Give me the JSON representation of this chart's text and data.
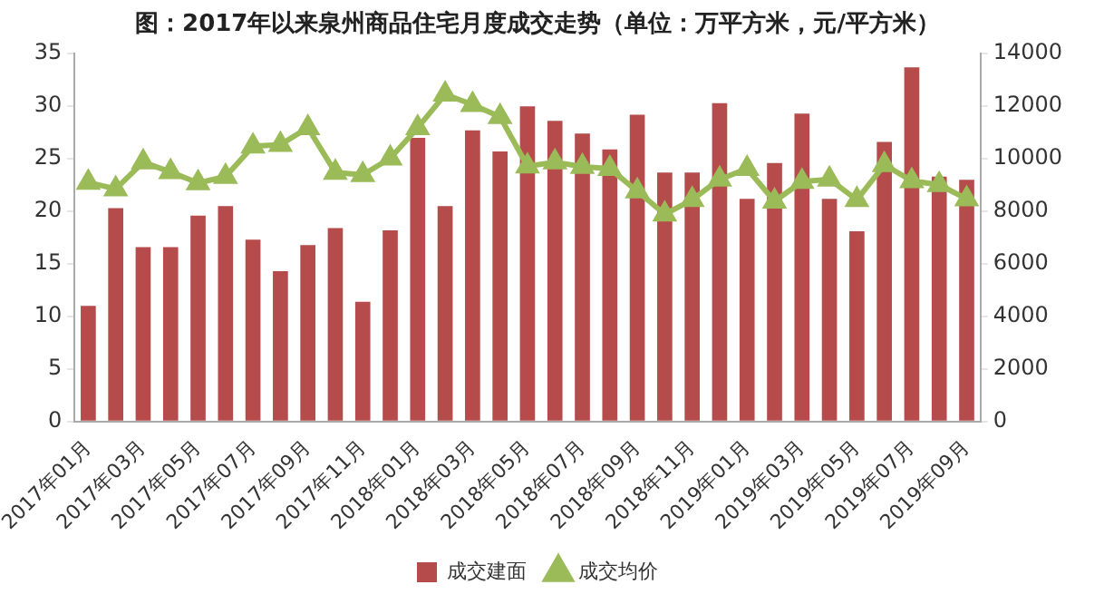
{
  "chart_data": {
    "type": "bar",
    "title": "图：2017年以来泉州商品住宅月度成交走势（单位：万平方米，元/平方米）",
    "categories": [
      "2017年01月",
      null,
      "2017年03月",
      null,
      "2017年05月",
      null,
      "2017年07月",
      null,
      "2017年09月",
      null,
      "2017年11月",
      null,
      "2018年01月",
      null,
      "2018年03月",
      null,
      "2018年05月",
      null,
      "2018年07月",
      null,
      "2018年09月",
      null,
      "2018年11月",
      null,
      "2019年01月",
      null,
      "2019年03月",
      null,
      "2019年05月",
      null,
      "2019年07月",
      null,
      "2019年09月"
    ],
    "series": [
      {
        "name": "成交建面",
        "color": "#b54b4b",
        "values": [
          11,
          20.3,
          16.6,
          16.6,
          19.6,
          20.5,
          17.3,
          14.3,
          16.8,
          18.4,
          11.4,
          18.2,
          27,
          20.5,
          27.7,
          25.7,
          30,
          28.6,
          27.4,
          25.9,
          29.2,
          23.7,
          23.7,
          30.3,
          21.2,
          24.6,
          29.3,
          21.2,
          18.1,
          26.6,
          33.7,
          23.3,
          23
        ]
      },
      {
        "name": "成交均价",
        "type": "line",
        "axis": "y2",
        "color": "#9bbb59",
        "values": [
          9100,
          8850,
          9870,
          9500,
          9080,
          9320,
          10480,
          10540,
          11180,
          9480,
          9390,
          10020,
          11180,
          12450,
          12060,
          11600,
          9720,
          9870,
          9700,
          9620,
          8770,
          7890,
          8440,
          9220,
          9620,
          8380,
          9130,
          9220,
          8440,
          9770,
          9160,
          9010,
          8470
        ]
      }
    ],
    "ylim": [
      0,
      35
    ],
    "yticks": [
      0,
      5,
      10,
      15,
      20,
      25,
      30,
      35
    ],
    "y2lim": [
      0,
      14000
    ],
    "y2ticks": [
      0,
      2000,
      4000,
      6000,
      8000,
      10000,
      12000,
      14000
    ],
    "grid": false,
    "legend": "bottom",
    "marker": "triangle"
  }
}
